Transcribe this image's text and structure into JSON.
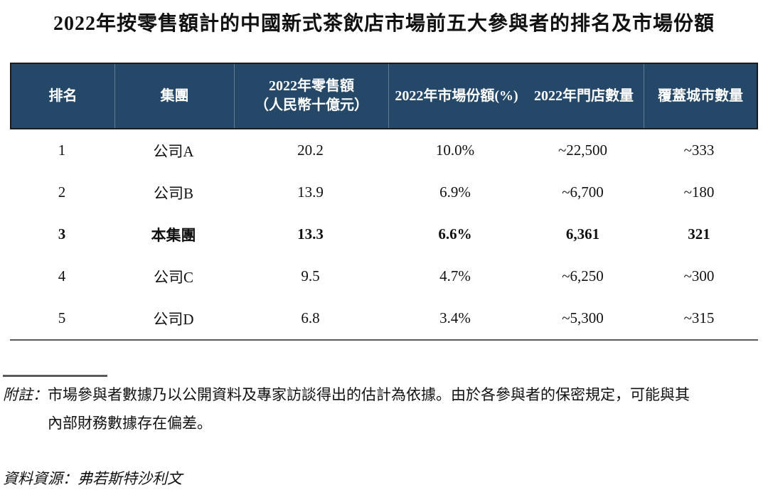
{
  "page": {
    "title": "2022年按零售額計的中國新式茶飲店市場前五大參與者的排名及市場份額"
  },
  "table": {
    "columns": [
      {
        "label": "排名"
      },
      {
        "label": "集團"
      },
      {
        "line1": "2022年零售額",
        "line2": "（人民幣十億元）"
      },
      {
        "label": "2022年市場份額(%)"
      },
      {
        "label": "2022年門店數量"
      },
      {
        "label": "覆蓋城市數量"
      }
    ],
    "rows": [
      {
        "rank": "1",
        "group": "公司A",
        "retail": "20.2",
        "share": "10.0%",
        "stores": "~22,500",
        "cities": "~333"
      },
      {
        "rank": "2",
        "group": "公司B",
        "retail": "13.9",
        "share": "6.9%",
        "stores": "~6,700",
        "cities": "~180"
      },
      {
        "rank": "3",
        "group": "本集團",
        "retail": "13.3",
        "share": "6.6%",
        "stores": "6,361",
        "cities": "321"
      },
      {
        "rank": "4",
        "group": "公司C",
        "retail": "9.5",
        "share": "4.7%",
        "stores": "~6,250",
        "cities": "~300"
      },
      {
        "rank": "5",
        "group": "公司D",
        "retail": "6.8",
        "share": "3.4%",
        "stores": "~5,300",
        "cities": "~315"
      }
    ]
  },
  "footnote": {
    "label": "附註：",
    "line1": "市場參與者數據乃以公開資料及專家訪談得出的估計為依據。由於各參與者的保密規定，可能與其",
    "line2": "內部財務數據存在偏差。"
  },
  "source_label": "資料資源：弗若斯特沙利文",
  "colors": {
    "header_bg": "#254869",
    "header_text": "#ffffff",
    "table_border": "#1c1c1c",
    "rule": "#58595b"
  }
}
